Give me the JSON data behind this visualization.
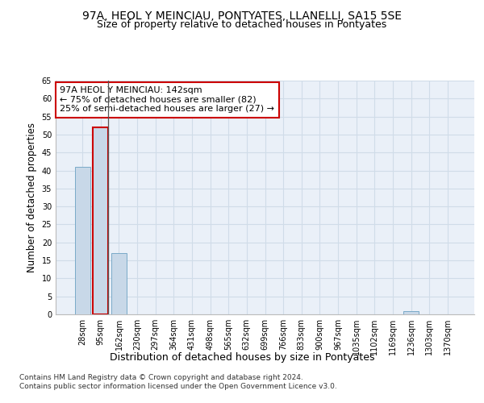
{
  "title_line1": "97A, HEOL Y MEINCIAU, PONTYATES, LLANELLI, SA15 5SE",
  "title_line2": "Size of property relative to detached houses in Pontyates",
  "xlabel": "Distribution of detached houses by size in Pontyates",
  "ylabel": "Number of detached properties",
  "bin_labels": [
    "28sqm",
    "95sqm",
    "162sqm",
    "230sqm",
    "297sqm",
    "364sqm",
    "431sqm",
    "498sqm",
    "565sqm",
    "632sqm",
    "699sqm",
    "766sqm",
    "833sqm",
    "900sqm",
    "967sqm",
    "1035sqm",
    "1102sqm",
    "1169sqm",
    "1236sqm",
    "1303sqm",
    "1370sqm"
  ],
  "bar_values": [
    41,
    52,
    17,
    0,
    0,
    0,
    0,
    0,
    0,
    0,
    0,
    0,
    0,
    0,
    0,
    0,
    0,
    0,
    1,
    0,
    0
  ],
  "bar_color": "#c8d8e8",
  "bar_edge_color": "#7aaac8",
  "subject_bar_index": 1,
  "subject_bar_edge_color": "#cc0000",
  "annotation_text": "97A HEOL Y MEINCIAU: 142sqm\n← 75% of detached houses are smaller (82)\n25% of semi-detached houses are larger (27) →",
  "annotation_box_color": "#ffffff",
  "annotation_box_edge_color": "#cc0000",
  "ylim": [
    0,
    65
  ],
  "yticks": [
    0,
    5,
    10,
    15,
    20,
    25,
    30,
    35,
    40,
    45,
    50,
    55,
    60,
    65
  ],
  "grid_color": "#d0dce8",
  "background_color": "#eaf0f8",
  "footer_line1": "Contains HM Land Registry data © Crown copyright and database right 2024.",
  "footer_line2": "Contains public sector information licensed under the Open Government Licence v3.0.",
  "title_fontsize": 10,
  "subtitle_fontsize": 9,
  "axis_label_fontsize": 8.5,
  "tick_fontsize": 7,
  "annotation_fontsize": 8,
  "footer_fontsize": 6.5
}
